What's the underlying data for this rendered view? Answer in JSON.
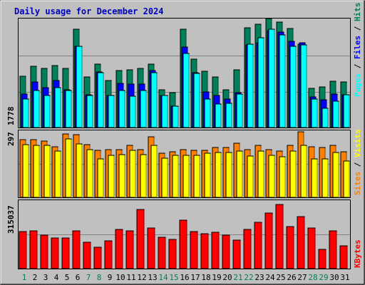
{
  "title": "Daily usage for December 2024",
  "colors": {
    "bg": "#c0c0c0",
    "title": "#0000c0",
    "hits": "#00805a",
    "files": "#0000ff",
    "pages": "#00ffff",
    "visits": "#ffff00",
    "sites": "#ff8000",
    "kbytes": "#ff0000",
    "day_weekday": "#000000",
    "day_weekend": "#00805a",
    "grid": "#808080"
  },
  "chart_data": [
    {
      "type": "bar",
      "panel": "hits-files-pages",
      "ymax_label": "1778",
      "ymax": 1778,
      "legend": [
        "Pages",
        "Files",
        "Hits"
      ],
      "categories": [
        "1",
        "2",
        "3",
        "4",
        "5",
        "6",
        "7",
        "8",
        "9",
        "10",
        "11",
        "12",
        "13",
        "14",
        "15",
        "16",
        "17",
        "18",
        "19",
        "20",
        "21",
        "22",
        "23",
        "24",
        "25",
        "26",
        "27",
        "28",
        "29",
        "30",
        "31"
      ],
      "series": [
        {
          "name": "Hits",
          "values": [
            840,
            1000,
            960,
            1010,
            960,
            1600,
            830,
            1040,
            770,
            930,
            940,
            970,
            1040,
            620,
            570,
            1600,
            1110,
            920,
            830,
            620,
            940,
            1630,
            1690,
            1780,
            1720,
            1610,
            1360,
            640,
            660,
            750,
            740
          ]
        },
        {
          "name": "Files",
          "values": [
            550,
            740,
            650,
            770,
            620,
            1330,
            530,
            910,
            520,
            720,
            710,
            710,
            930,
            520,
            350,
            1310,
            900,
            580,
            520,
            470,
            570,
            1350,
            1380,
            1580,
            1560,
            1410,
            1380,
            500,
            450,
            550,
            540
          ]
        },
        {
          "name": "Pages",
          "values": [
            470,
            600,
            520,
            650,
            610,
            1330,
            520,
            890,
            520,
            610,
            510,
            600,
            890,
            520,
            350,
            1210,
            880,
            460,
            380,
            390,
            550,
            1360,
            1470,
            1600,
            1510,
            1320,
            1350,
            470,
            310,
            430,
            540
          ]
        }
      ]
    },
    {
      "type": "bar",
      "panel": "visits-sites",
      "ymax_label": "297",
      "ymax": 297,
      "legend": [
        "Sites",
        "Visits"
      ],
      "categories": [
        "1",
        "2",
        "3",
        "4",
        "5",
        "6",
        "7",
        "8",
        "9",
        "10",
        "11",
        "12",
        "13",
        "14",
        "15",
        "16",
        "17",
        "18",
        "19",
        "20",
        "21",
        "22",
        "23",
        "24",
        "25",
        "26",
        "27",
        "28",
        "29",
        "30",
        "31"
      ],
      "series": [
        {
          "name": "Sites",
          "values": [
            255,
            255,
            250,
            225,
            282,
            278,
            233,
            208,
            212,
            212,
            232,
            212,
            270,
            197,
            203,
            212,
            208,
            210,
            220,
            220,
            240,
            213,
            232,
            212,
            205,
            232,
            290,
            225,
            220,
            232,
            202
          ]
        },
        {
          "name": "Visits",
          "values": [
            235,
            232,
            230,
            205,
            260,
            238,
            213,
            170,
            185,
            190,
            210,
            190,
            230,
            175,
            185,
            185,
            185,
            195,
            200,
            200,
            205,
            182,
            205,
            185,
            180,
            205,
            230,
            170,
            172,
            200,
            160
          ]
        }
      ]
    },
    {
      "type": "bar",
      "panel": "kbytes",
      "ymax_label": "315037",
      "ymax": 315037,
      "legend": [
        "KBytes"
      ],
      "categories": [
        "1",
        "2",
        "3",
        "4",
        "5",
        "6",
        "7",
        "8",
        "9",
        "10",
        "11",
        "12",
        "13",
        "14",
        "15",
        "16",
        "17",
        "18",
        "19",
        "20",
        "21",
        "22",
        "23",
        "24",
        "25",
        "26",
        "27",
        "28",
        "29",
        "30",
        "31"
      ],
      "series": [
        {
          "name": "KBytes",
          "values": [
            170000,
            174000,
            155000,
            141000,
            141000,
            174000,
            121000,
            98000,
            128000,
            180000,
            174000,
            273000,
            186000,
            143000,
            134000,
            224000,
            170000,
            161000,
            166000,
            155000,
            130000,
            182000,
            213000,
            256000,
            296000,
            193000,
            239000,
            186000,
            89000,
            175000,
            106000
          ]
        }
      ]
    }
  ]
}
